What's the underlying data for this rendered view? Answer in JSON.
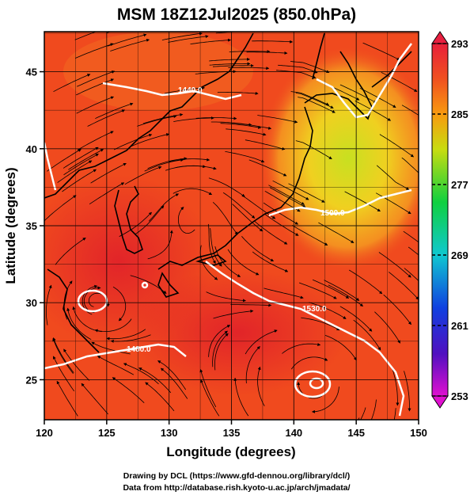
{
  "title": "MSM 18Z12Jul2025 (850.0hPa)",
  "x_axis": {
    "label": "Longitude (degrees)",
    "range": [
      120,
      150
    ],
    "ticks": [
      "120",
      "125",
      "130",
      "135",
      "140",
      "145",
      "150"
    ]
  },
  "y_axis": {
    "label": "Latitude  (degrees)",
    "range": [
      22.4,
      47.6
    ],
    "ticks": [
      "25",
      "30",
      "35",
      "40",
      "45"
    ]
  },
  "colorbar": {
    "range": [
      253,
      293
    ],
    "ticks": [
      "293",
      "285",
      "277",
      "269",
      "261",
      "253"
    ]
  },
  "contours": {
    "color": "#ffffff",
    "labels": [
      "1440.0",
      "1500.0",
      "1530.0",
      "1480.0"
    ]
  },
  "colors": {
    "warm": "#f04a1e",
    "hot": "#e82a20",
    "cool_zone": "#f0d020",
    "green_zone": "#b8dc20",
    "coast": "#000000",
    "grid": "#000000"
  },
  "credits": {
    "line1": "Drawing by DCL (https://www.gfd-dennou.org/library/dcl/)",
    "line2": "Data from http://database.rish.kyoto-u.ac.jp/arch/jmadata/"
  }
}
